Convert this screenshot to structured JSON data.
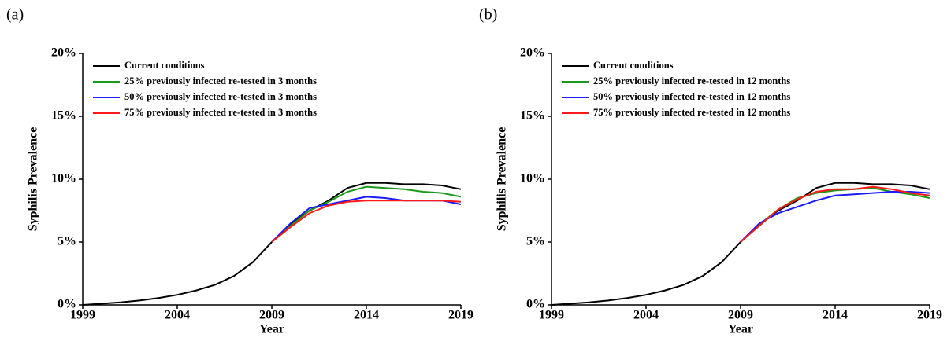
{
  "chart_data": [
    {
      "type": "line",
      "panel_label": "(a)",
      "x_label": "Year",
      "y_label": "Syphilis Prevalence",
      "x": [
        1999,
        2000,
        2001,
        2002,
        2003,
        2004,
        2005,
        2006,
        2007,
        2008,
        2009,
        2010,
        2011,
        2012,
        2013,
        2014,
        2015,
        2016,
        2017,
        2018,
        2019
      ],
      "xlim": [
        1999,
        2019
      ],
      "xticks": [
        1999,
        2004,
        2009,
        2014,
        2019
      ],
      "ylim": [
        0,
        20
      ],
      "yticks": [
        {
          "value": 0,
          "label": "0%"
        },
        {
          "value": 5,
          "label": "5%"
        },
        {
          "value": 10,
          "label": "10%"
        },
        {
          "value": 15,
          "label": "15%"
        },
        {
          "value": 20,
          "label": "20%"
        }
      ],
      "grid": false,
      "legend": "upper left",
      "series": [
        {
          "name": "Current conditions",
          "color": "#000000",
          "values": [
            0,
            0.1,
            0.2,
            0.35,
            0.55,
            0.8,
            1.15,
            1.6,
            2.3,
            3.4,
            5.0,
            6.4,
            7.5,
            8.3,
            9.3,
            9.7,
            9.7,
            9.6,
            9.6,
            9.5,
            9.2
          ]
        },
        {
          "name": "25% previously infected re-tested in 3 months",
          "color": "#1a9a1a",
          "values": [
            null,
            null,
            null,
            null,
            null,
            null,
            null,
            null,
            null,
            null,
            5.0,
            6.3,
            7.5,
            8.2,
            9.0,
            9.4,
            9.3,
            9.2,
            9.0,
            8.9,
            8.6
          ]
        },
        {
          "name": "50% previously infected re-tested in 3 months",
          "color": "#1a1aff",
          "values": [
            null,
            null,
            null,
            null,
            null,
            null,
            null,
            null,
            null,
            null,
            5.0,
            6.5,
            7.7,
            8.0,
            8.3,
            8.6,
            8.5,
            8.3,
            8.3,
            8.3,
            8.0
          ]
        },
        {
          "name": "75% previously infected re-tested in 3 months",
          "color": "#ff1a1a",
          "values": [
            null,
            null,
            null,
            null,
            null,
            null,
            null,
            null,
            null,
            null,
            5.0,
            6.2,
            7.3,
            7.9,
            8.2,
            8.3,
            8.3,
            8.3,
            8.3,
            8.3,
            8.2
          ]
        }
      ]
    },
    {
      "type": "line",
      "panel_label": "(b)",
      "x_label": "Year",
      "y_label": "Syphilis Prevalence",
      "x": [
        1999,
        2000,
        2001,
        2002,
        2003,
        2004,
        2005,
        2006,
        2007,
        2008,
        2009,
        2010,
        2011,
        2012,
        2013,
        2014,
        2015,
        2016,
        2017,
        2018,
        2019
      ],
      "xlim": [
        1999,
        2019
      ],
      "xticks": [
        1999,
        2004,
        2009,
        2014,
        2019
      ],
      "ylim": [
        0,
        20
      ],
      "yticks": [
        {
          "value": 0,
          "label": "0%"
        },
        {
          "value": 5,
          "label": "5%"
        },
        {
          "value": 10,
          "label": "10%"
        },
        {
          "value": 15,
          "label": "15%"
        },
        {
          "value": 20,
          "label": "20%"
        }
      ],
      "grid": false,
      "legend": "upper left",
      "series": [
        {
          "name": "Current conditions",
          "color": "#000000",
          "values": [
            0,
            0.1,
            0.2,
            0.35,
            0.55,
            0.8,
            1.15,
            1.6,
            2.3,
            3.4,
            5.0,
            6.4,
            7.5,
            8.3,
            9.3,
            9.7,
            9.7,
            9.6,
            9.6,
            9.5,
            9.2
          ]
        },
        {
          "name": "25% previously infected re-tested in 12 months",
          "color": "#1a9a1a",
          "values": [
            null,
            null,
            null,
            null,
            null,
            null,
            null,
            null,
            null,
            null,
            5.0,
            6.4,
            7.6,
            8.5,
            8.9,
            9.1,
            9.2,
            9.3,
            9.0,
            8.8,
            8.5
          ]
        },
        {
          "name": "50% previously infected re-tested in 12 months",
          "color": "#1a1aff",
          "values": [
            null,
            null,
            null,
            null,
            null,
            null,
            null,
            null,
            null,
            null,
            5.0,
            6.5,
            7.3,
            7.8,
            8.3,
            8.7,
            8.8,
            8.9,
            9.0,
            9.0,
            8.9
          ]
        },
        {
          "name": "75% previously infected re-tested in 12 months",
          "color": "#ff1a1a",
          "values": [
            null,
            null,
            null,
            null,
            null,
            null,
            null,
            null,
            null,
            null,
            5.0,
            6.3,
            7.6,
            8.4,
            9.0,
            9.2,
            9.2,
            9.4,
            9.2,
            8.9,
            8.7
          ]
        }
      ]
    }
  ]
}
